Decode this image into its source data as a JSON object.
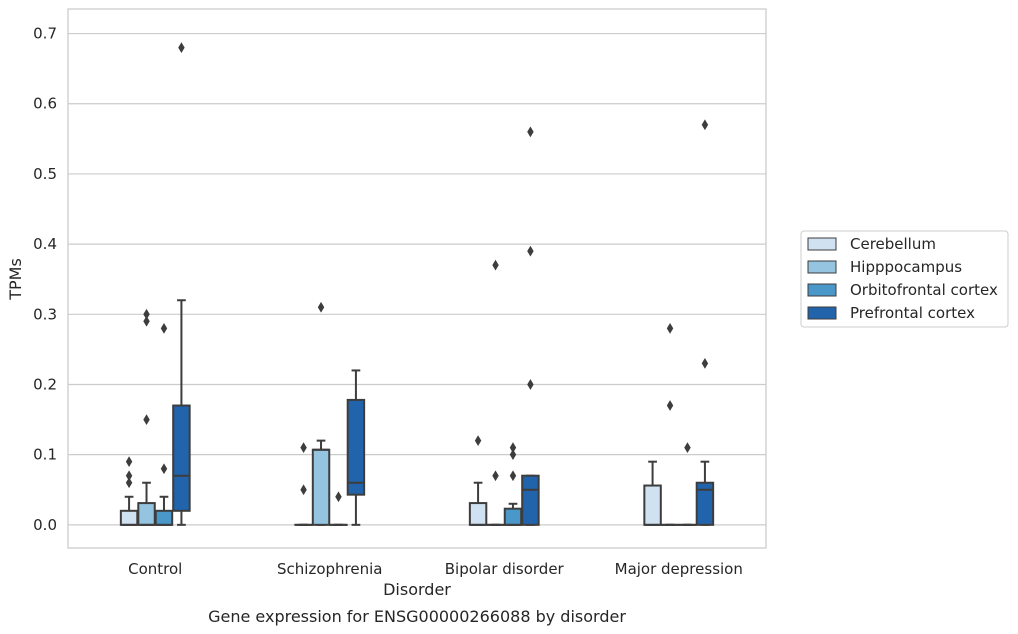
{
  "caption": "Gene expression for ENSG00000266088 by disorder",
  "chart_data": {
    "type": "box",
    "title": "",
    "xlabel": "Disorder",
    "ylabel": "TPMs",
    "ylim": [
      -0.033,
      0.735
    ],
    "yticks": [
      0.0,
      0.1,
      0.2,
      0.3,
      0.4,
      0.5,
      0.6,
      0.7
    ],
    "ytick_labels": [
      "0.0",
      "0.1",
      "0.2",
      "0.3",
      "0.4",
      "0.5",
      "0.6",
      "0.7"
    ],
    "grid": "horizontal",
    "legend_position": "right",
    "categories": [
      "Control",
      "Schizophrenia",
      "Bipolar disorder",
      "Major depression"
    ],
    "series": [
      {
        "name": "Cerebellum",
        "color": "#d0e1f2",
        "boxes": [
          {
            "whislo": 0,
            "q1": 0,
            "med": 0,
            "q3": 0.02,
            "whishi": 0.04,
            "fliers": [
              0.06,
              0.07,
              0.09
            ]
          },
          {
            "whislo": 0,
            "q1": 0,
            "med": 0,
            "q3": 0,
            "whishi": 0,
            "fliers": [
              0.05,
              0.11
            ]
          },
          {
            "whislo": 0,
            "q1": 0,
            "med": 0,
            "q3": 0.031,
            "whishi": 0.06,
            "fliers": [
              0.12
            ]
          },
          {
            "whislo": 0,
            "q1": 0,
            "med": 0,
            "q3": 0.056,
            "whishi": 0.09,
            "fliers": []
          }
        ]
      },
      {
        "name": "Hipppocampus",
        "color": "#94c4df",
        "boxes": [
          {
            "whislo": 0,
            "q1": 0,
            "med": 0,
            "q3": 0.031,
            "whishi": 0.06,
            "fliers": [
              0.15,
              0.29,
              0.3
            ]
          },
          {
            "whislo": 0,
            "q1": 0,
            "med": 0.107,
            "q3": 0.107,
            "whishi": 0.12,
            "fliers": [
              0.31
            ]
          },
          {
            "whislo": 0,
            "q1": 0,
            "med": 0,
            "q3": 0,
            "whishi": 0,
            "fliers": [
              0.07,
              0.37
            ]
          },
          {
            "whislo": 0,
            "q1": 0,
            "med": 0,
            "q3": 0,
            "whishi": 0,
            "fliers": [
              0.17,
              0.28
            ]
          }
        ]
      },
      {
        "name": "Orbitofrontal cortex",
        "color": "#4a98c9",
        "boxes": [
          {
            "whislo": 0,
            "q1": 0,
            "med": 0,
            "q3": 0.02,
            "whishi": 0.04,
            "fliers": [
              0.08,
              0.28
            ]
          },
          {
            "whislo": 0,
            "q1": 0,
            "med": 0,
            "q3": 0,
            "whishi": 0,
            "fliers": [
              0.04
            ]
          },
          {
            "whislo": 0,
            "q1": 0,
            "med": 0,
            "q3": 0.023,
            "whishi": 0.03,
            "fliers": [
              0.07,
              0.1,
              0.11
            ]
          },
          {
            "whislo": 0,
            "q1": 0,
            "med": 0,
            "q3": 0,
            "whishi": 0,
            "fliers": [
              0.11
            ]
          }
        ]
      },
      {
        "name": "Prefrontal cortex",
        "color": "#2164ab",
        "boxes": [
          {
            "whislo": 0,
            "q1": 0.02,
            "med": 0.07,
            "q3": 0.17,
            "whishi": 0.32,
            "fliers": [
              0.68
            ]
          },
          {
            "whislo": 0,
            "q1": 0.043,
            "med": 0.06,
            "q3": 0.178,
            "whishi": 0.22,
            "fliers": []
          },
          {
            "whislo": 0,
            "q1": 0,
            "med": 0.05,
            "q3": 0.07,
            "whishi": 0.07,
            "fliers": [
              0.2,
              0.39,
              0.56
            ]
          },
          {
            "whislo": 0,
            "q1": 0,
            "med": 0.05,
            "q3": 0.06,
            "whishi": 0.09,
            "fliers": [
              0.23,
              0.57
            ]
          }
        ]
      }
    ]
  }
}
